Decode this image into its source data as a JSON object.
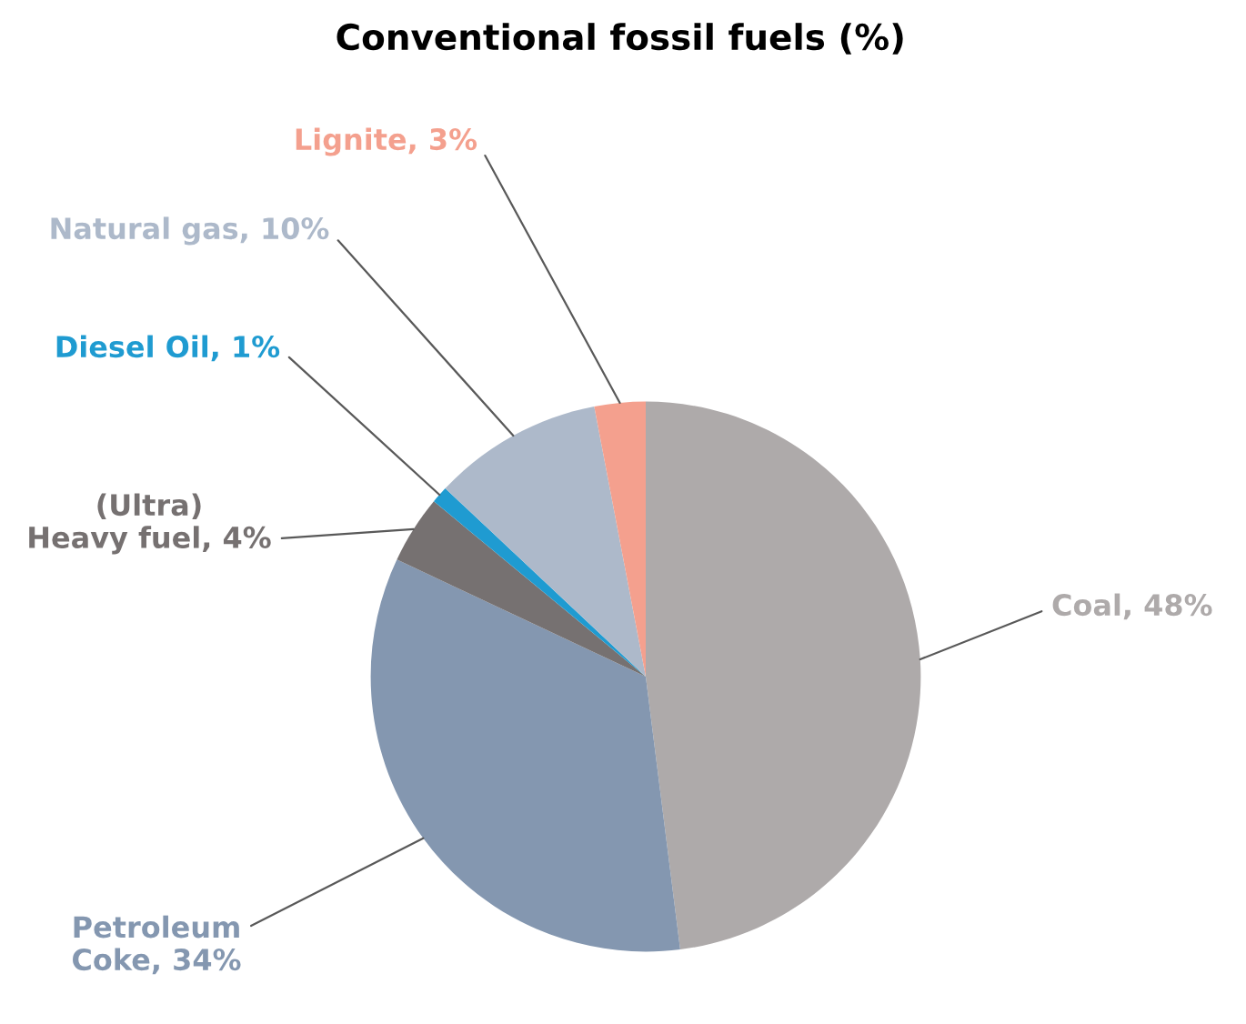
{
  "chart_data": {
    "type": "pie",
    "title": "Conventional fossil fuels (%)",
    "categories": [
      "Coal",
      "Petroleum Coke",
      "(Ultra) Heavy fuel",
      "Diesel Oil",
      "Natural gas",
      "Lignite"
    ],
    "values": [
      48,
      34,
      4,
      1,
      10,
      3
    ],
    "colors": [
      "#aeaaaa",
      "#8497b0",
      "#767171",
      "#1f9bd1",
      "#adb9ca",
      "#f4a08e"
    ],
    "value_labels": [
      "48%",
      "34%",
      "4%",
      "1%",
      "10%",
      "3%"
    ]
  }
}
